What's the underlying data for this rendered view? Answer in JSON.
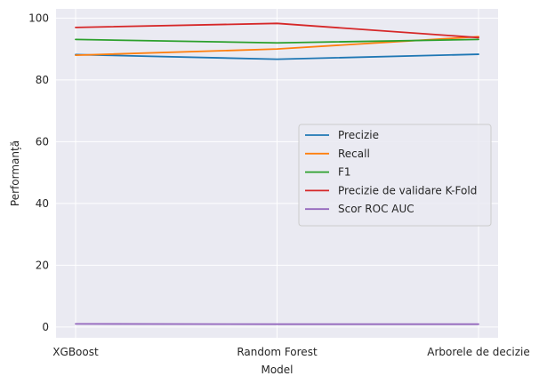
{
  "chart_data": {
    "type": "line",
    "xlabel": "Model",
    "ylabel": "Performanță",
    "categories": [
      "XGBoost",
      "Random Forest",
      "Arborele de decizie"
    ],
    "ylim": [
      -3.5,
      103
    ],
    "yticks": [
      0,
      20,
      40,
      60,
      80,
      100
    ],
    "grid": true,
    "legend_position": "center-right",
    "series": [
      {
        "name": "Precizie",
        "color": "#1f77b4",
        "values": [
          88.2,
          86.7,
          88.3
        ]
      },
      {
        "name": "Recall",
        "color": "#ff7f0e",
        "values": [
          88.0,
          90.0,
          94.0
        ]
      },
      {
        "name": "F1",
        "color": "#2ca02c",
        "values": [
          93.1,
          92.0,
          93.1
        ]
      },
      {
        "name": "Precizie de validare K-Fold",
        "color": "#d62728",
        "values": [
          97.0,
          98.3,
          93.7
        ]
      },
      {
        "name": "Scor ROC AUC",
        "color": "#9467bd",
        "values": [
          1.0,
          0.9,
          0.9
        ]
      }
    ]
  }
}
